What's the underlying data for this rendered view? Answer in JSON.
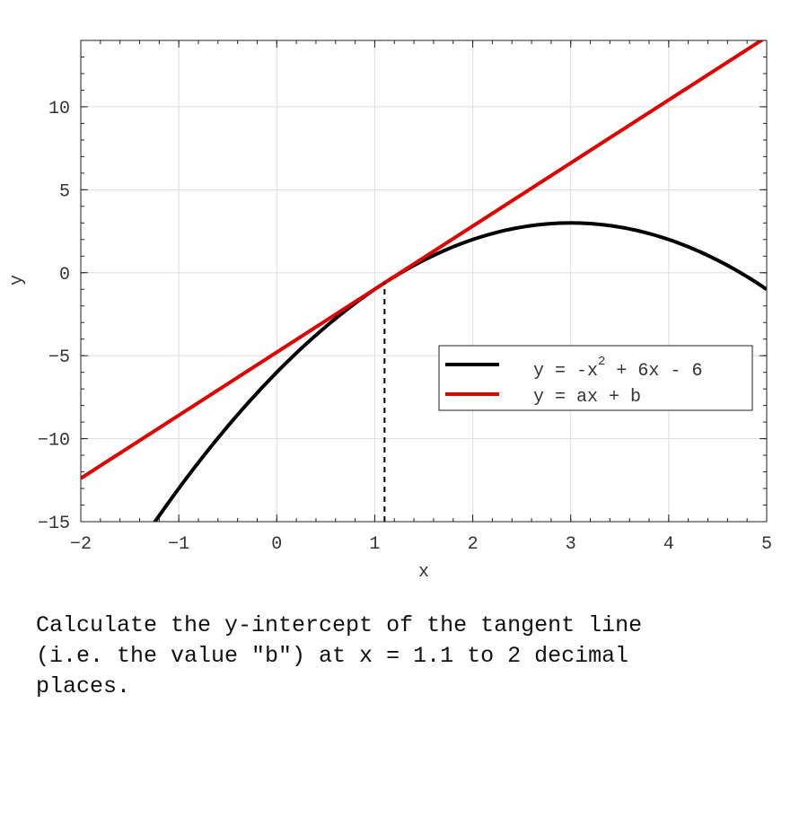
{
  "chart_data": {
    "type": "line",
    "xlabel": "x",
    "ylabel": "y",
    "xlim": [
      -2,
      5
    ],
    "ylim": [
      -15,
      14
    ],
    "xticks": [
      -2,
      -1,
      0,
      1,
      2,
      3,
      4,
      5
    ],
    "yticks": [
      -15,
      -10,
      -5,
      0,
      5,
      10
    ],
    "grid": true,
    "legend_position": "center-right",
    "series": [
      {
        "name_parts": [
          "y = -x",
          "2",
          " + 6x - 6"
        ],
        "color": "#000000",
        "expression": "-x^2 + 6x - 6",
        "x_range": [
          -2,
          5
        ]
      },
      {
        "name": "y = ax + b",
        "color": "#e00000",
        "slope": 3.8,
        "intercept": -4.79,
        "x_range": [
          -2,
          5
        ]
      }
    ],
    "marker_line": {
      "x": 1.1,
      "y_from": -15,
      "y_to": -0.61,
      "style": "dashed",
      "color": "#000000"
    }
  },
  "question": {
    "text": "Calculate the y-intercept of the tangent line\n(i.e. the value \"b\") at x = 1.1 to 2 decimal\nplaces."
  }
}
